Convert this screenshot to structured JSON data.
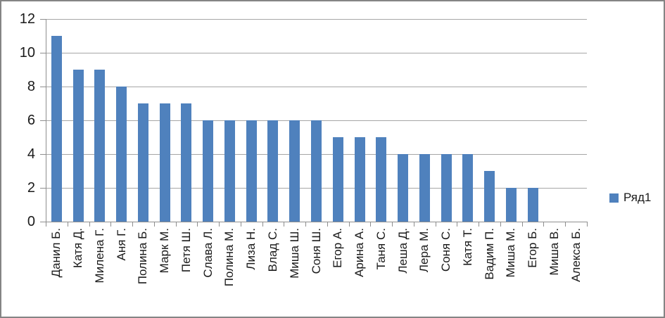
{
  "chart_data": {
    "type": "bar",
    "title": "",
    "xlabel": "",
    "ylabel": "",
    "categories": [
      "Данил Б.",
      "Катя Д.",
      "Милена Г.",
      "Аня Г.",
      "Полина Б.",
      "Марк М.",
      "Петя Ш.",
      "Слава Л.",
      "Полина М.",
      "Лиза Н.",
      "Влад С.",
      "Миша Ш.",
      "Соня Ш.",
      "Егор А.",
      "Арина А.",
      "Таня С.",
      "Леша Д.",
      "Лера М.",
      "Соня С.",
      "Катя Т.",
      "Вадим П.",
      "Миша М.",
      "Егор Б.",
      "Миша В.",
      "Алекса Б."
    ],
    "series": [
      {
        "name": "Ряд1",
        "values": [
          11,
          9,
          9,
          8,
          7,
          7,
          7,
          6,
          6,
          6,
          6,
          6,
          6,
          5,
          5,
          5,
          4,
          4,
          4,
          4,
          3,
          2,
          2,
          0,
          0
        ]
      }
    ],
    "ylim": [
      0,
      12
    ],
    "yticks": [
      0,
      2,
      4,
      6,
      8,
      10,
      12
    ],
    "grid": true,
    "legend_position": "right"
  },
  "style": {
    "bar_color": "#4F81BD",
    "gridline_color": "#A6A6A6",
    "axis_color": "#8E8E8E",
    "text_color": "#1A1A1A",
    "border_color": "#848484",
    "background_color": "#FFFFFF"
  }
}
